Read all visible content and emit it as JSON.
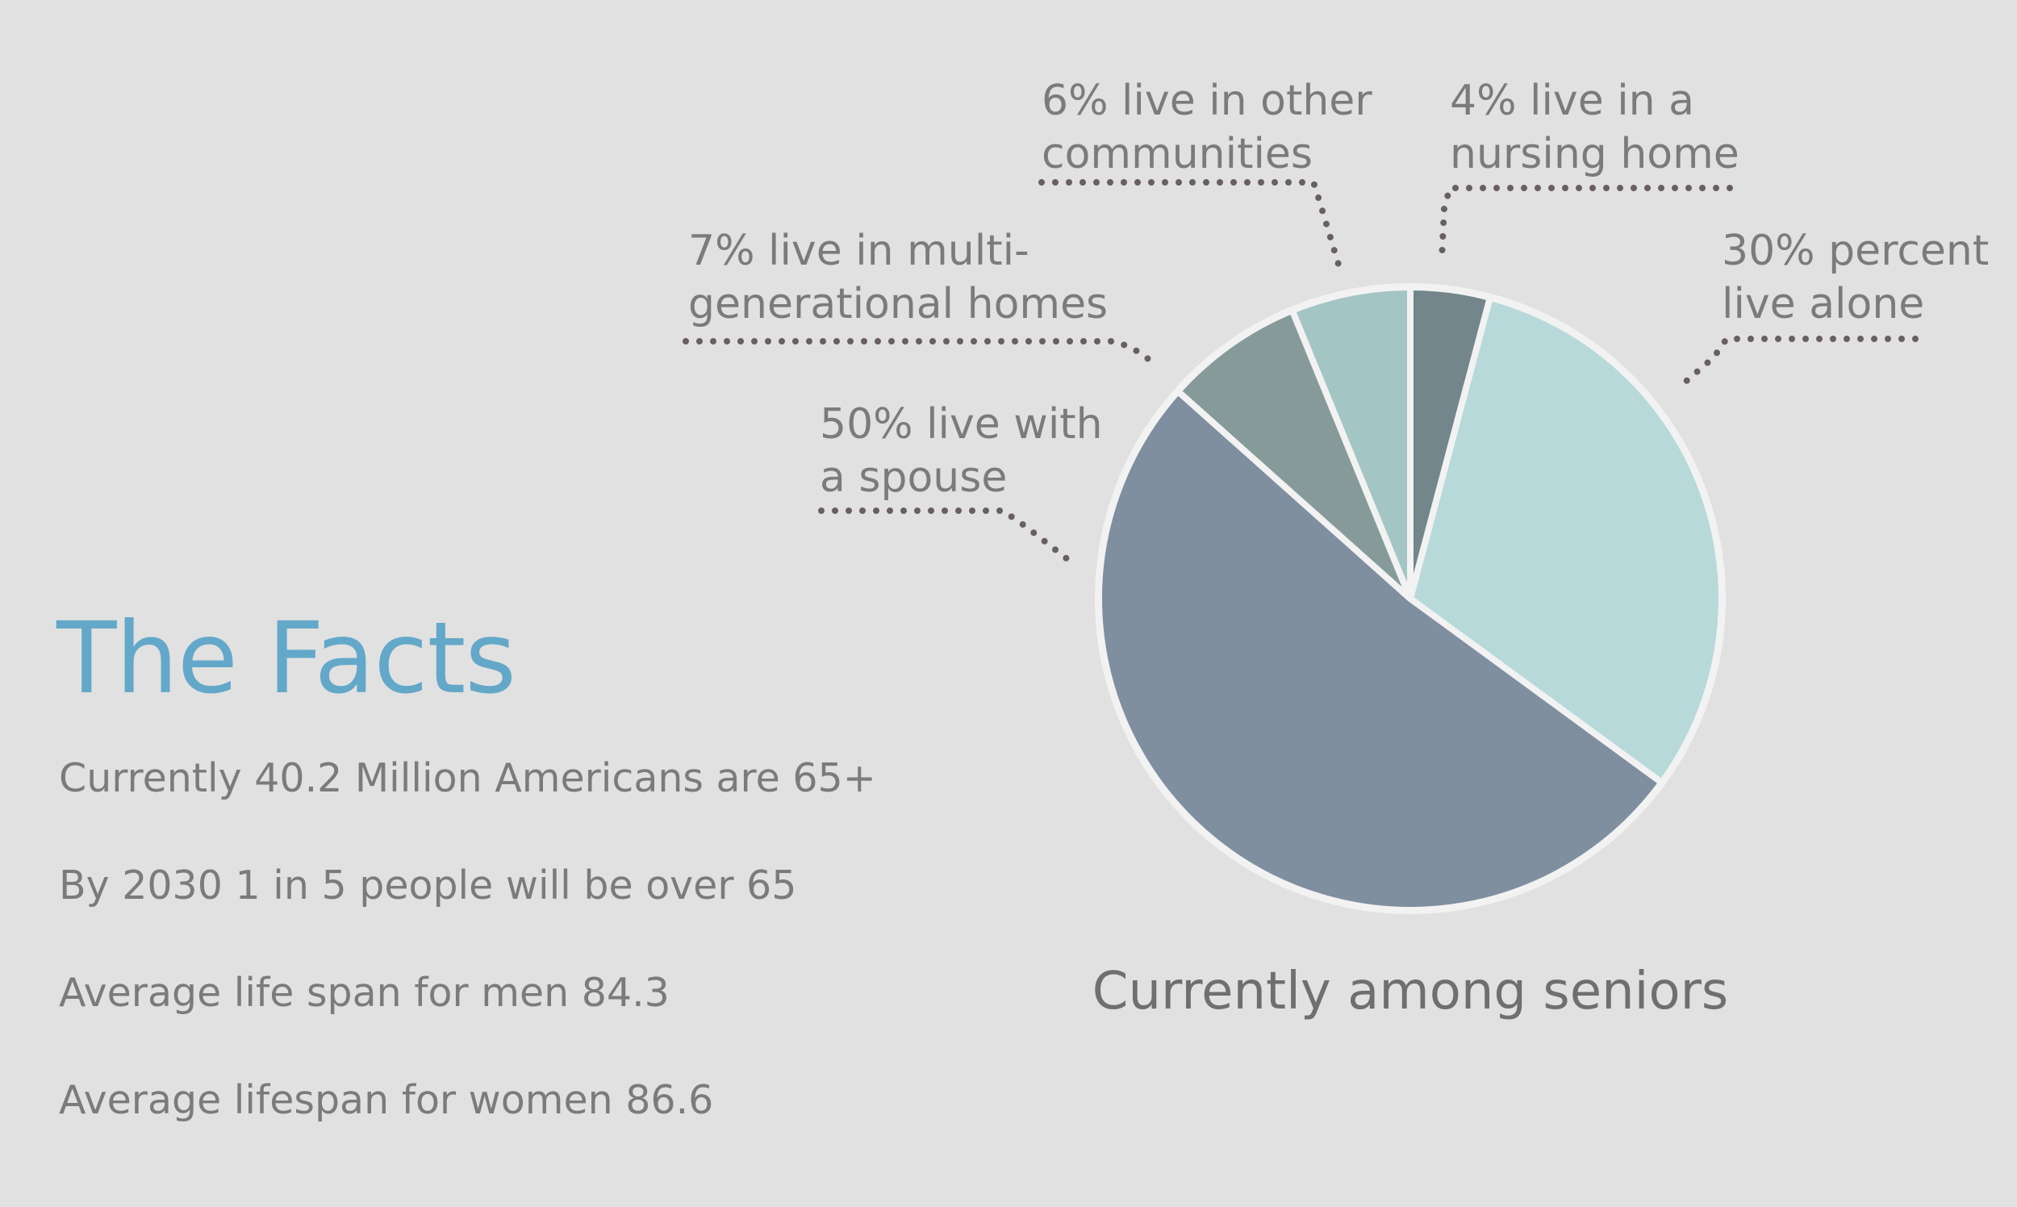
{
  "facts": {
    "heading": "The Facts",
    "items": [
      "Currently 40.2 Million Americans are 65+",
      "By 2030 1 in 5 people will be over 65",
      "Average life span for men 84.3",
      "Average lifespan for women 86.6"
    ]
  },
  "colors": {
    "heading": "#63a8c8",
    "text": "#7b7b7b",
    "background": "#e2e1e1",
    "leader_dots": "#67605f"
  },
  "chart_data": {
    "type": "pie",
    "title": "Currently among seniors",
    "start_angle_deg": 0,
    "direction": "clockwise",
    "slices": [
      {
        "label_lines": [
          "4% live in a",
          "nursing home"
        ],
        "value": 4,
        "color": "#72868b"
      },
      {
        "label_lines": [
          "30% percent",
          "live alone"
        ],
        "value": 30,
        "color": "#b8d9da"
      },
      {
        "label_lines": [
          "50% live with",
          "a spouse"
        ],
        "value": 50,
        "color": "#7f8fa0"
      },
      {
        "label_lines": [
          "7% live in multi-",
          "generational homes"
        ],
        "value": 7,
        "color": "#879a9a"
      },
      {
        "label_lines": [
          "6% live in other",
          "communities"
        ],
        "value": 6,
        "color": "#a3c5c4"
      }
    ]
  }
}
